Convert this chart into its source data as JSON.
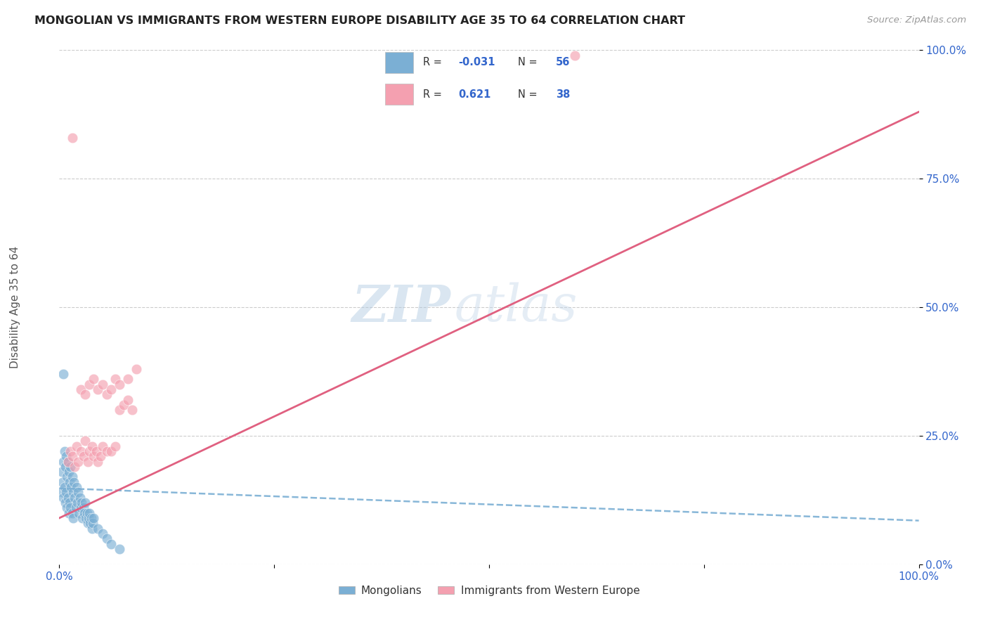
{
  "title": "MONGOLIAN VS IMMIGRANTS FROM WESTERN EUROPE DISABILITY AGE 35 TO 64 CORRELATION CHART",
  "source": "Source: ZipAtlas.com",
  "ylabel": "Disability Age 35 to 64",
  "xlim": [
    0.0,
    1.0
  ],
  "ylim": [
    0.0,
    1.0
  ],
  "xticks": [
    0.0,
    0.25,
    0.5,
    0.75,
    1.0
  ],
  "yticks": [
    0.0,
    0.25,
    0.5,
    0.75,
    1.0
  ],
  "xticklabels": [
    "0.0%",
    "",
    "",
    "",
    "100.0%"
  ],
  "yticklabels": [
    "0.0%",
    "25.0%",
    "50.0%",
    "75.0%",
    "100.0%"
  ],
  "mongolian_color": "#7bafd4",
  "western_europe_color": "#f4a0b0",
  "mongolian_line_color": "#7bafd4",
  "western_europe_line_color": "#e06080",
  "mongolian_R": -0.031,
  "mongolian_N": 56,
  "western_europe_R": 0.621,
  "western_europe_N": 38,
  "watermark_zip": "ZIP",
  "watermark_atlas": "atlas",
  "legend_label_1": "Mongolians",
  "legend_label_2": "Immigrants from Western Europe",
  "mong_x": [
    0.003,
    0.003,
    0.004,
    0.005,
    0.005,
    0.006,
    0.006,
    0.007,
    0.007,
    0.008,
    0.008,
    0.009,
    0.009,
    0.01,
    0.01,
    0.011,
    0.011,
    0.012,
    0.012,
    0.013,
    0.013,
    0.014,
    0.015,
    0.015,
    0.016,
    0.016,
    0.017,
    0.018,
    0.019,
    0.02,
    0.021,
    0.022,
    0.023,
    0.024,
    0.025,
    0.026,
    0.027,
    0.028,
    0.029,
    0.03,
    0.031,
    0.032,
    0.033,
    0.034,
    0.035,
    0.036,
    0.037,
    0.038,
    0.039,
    0.04,
    0.045,
    0.05,
    0.055,
    0.06,
    0.07,
    0.005
  ],
  "mong_y": [
    0.18,
    0.14,
    0.16,
    0.2,
    0.13,
    0.22,
    0.15,
    0.19,
    0.12,
    0.21,
    0.14,
    0.17,
    0.11,
    0.2,
    0.13,
    0.18,
    0.1,
    0.16,
    0.12,
    0.19,
    0.11,
    0.15,
    0.17,
    0.1,
    0.14,
    0.09,
    0.16,
    0.13,
    0.11,
    0.15,
    0.12,
    0.14,
    0.1,
    0.13,
    0.11,
    0.12,
    0.09,
    0.11,
    0.1,
    0.12,
    0.09,
    0.1,
    0.08,
    0.09,
    0.1,
    0.08,
    0.09,
    0.07,
    0.08,
    0.09,
    0.07,
    0.06,
    0.05,
    0.04,
    0.03,
    0.37
  ],
  "we_x": [
    0.01,
    0.013,
    0.015,
    0.018,
    0.02,
    0.022,
    0.025,
    0.028,
    0.03,
    0.033,
    0.035,
    0.038,
    0.04,
    0.043,
    0.045,
    0.048,
    0.05,
    0.055,
    0.06,
    0.065,
    0.07,
    0.075,
    0.08,
    0.085,
    0.025,
    0.03,
    0.035,
    0.04,
    0.045,
    0.05,
    0.055,
    0.06,
    0.065,
    0.07,
    0.08,
    0.09,
    0.6,
    0.015
  ],
  "we_y": [
    0.2,
    0.22,
    0.21,
    0.19,
    0.23,
    0.2,
    0.22,
    0.21,
    0.24,
    0.2,
    0.22,
    0.23,
    0.21,
    0.22,
    0.2,
    0.21,
    0.23,
    0.22,
    0.22,
    0.23,
    0.3,
    0.31,
    0.32,
    0.3,
    0.34,
    0.33,
    0.35,
    0.36,
    0.34,
    0.35,
    0.33,
    0.34,
    0.36,
    0.35,
    0.36,
    0.38,
    0.99,
    0.83
  ],
  "mong_trend_x": [
    0.0,
    1.0
  ],
  "mong_trend_y": [
    0.148,
    0.085
  ],
  "we_trend_x": [
    0.0,
    1.0
  ],
  "we_trend_y": [
    0.09,
    0.88
  ]
}
